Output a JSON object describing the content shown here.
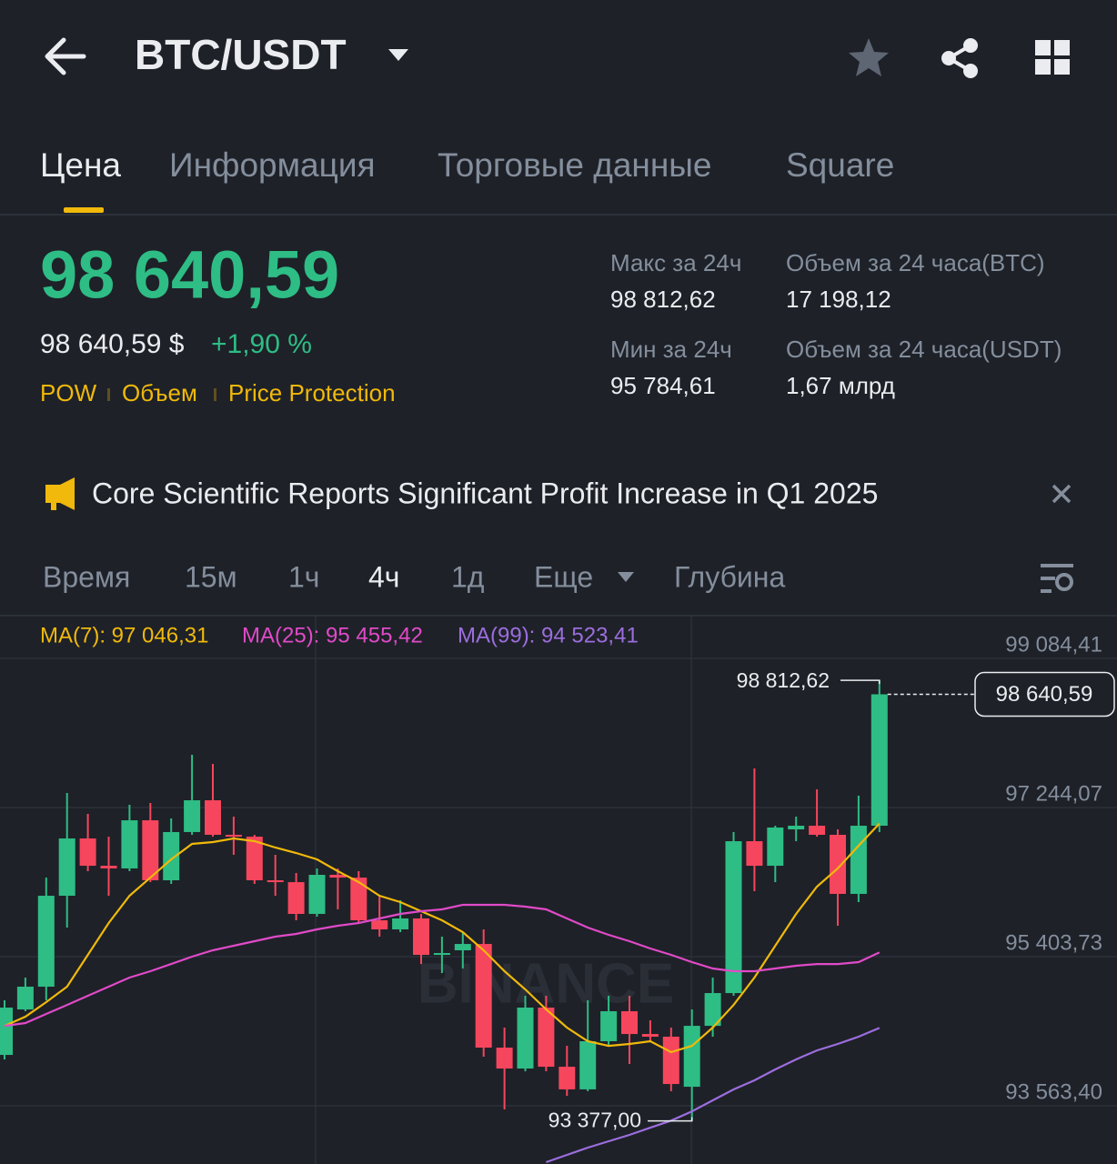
{
  "header": {
    "title": "BTC/USDT"
  },
  "tabs": [
    "Цена",
    "Информация",
    "Торговые данные",
    "Square"
  ],
  "price": {
    "last": "98 640,59",
    "usd": "98 640,59 $",
    "change": "+1,90 %",
    "tags": [
      "POW",
      "Объем",
      "Price Protection"
    ]
  },
  "stats": [
    {
      "label": "Макс за 24ч",
      "value": "98 812,62"
    },
    {
      "label": "Мин за 24ч",
      "value": "95 784,61"
    },
    {
      "label": "Объем за 24 часа(BTC)",
      "value": "17 198,12"
    },
    {
      "label": "Объем за 24 часа(USDT)",
      "value": "1,67 млрд"
    }
  ],
  "news": {
    "text": "Core Scientific Reports Significant Profit Increase in Q1 2025"
  },
  "intervals": [
    "Время",
    "15м",
    "1ч",
    "4ч",
    "1д",
    "Еще",
    "Глубина"
  ],
  "chart_data": {
    "type": "candlestick",
    "watermark": "BINANCE",
    "up_color": "#2ebd85",
    "down_color": "#f6465d",
    "open": [
      94191,
      94752,
      95033,
      96155,
      96862,
      96525,
      96492,
      97086,
      96346,
      96941,
      97333,
      96907,
      96884,
      96346,
      96323,
      95931,
      96413,
      96379,
      95852,
      95740,
      95875,
      95426,
      95482,
      95560,
      94281,
      94023,
      94775,
      94045,
      93766,
      94360,
      94730,
      94449,
      94416,
      93798,
      94550,
      94954,
      96828,
      96525,
      96974,
      97019,
      96907,
      96178,
      97019
    ],
    "high": [
      94865,
      95145,
      96379,
      97423,
      97165,
      96884,
      97277,
      97300,
      97109,
      97894,
      97782,
      97131,
      96907,
      96660,
      96436,
      96492,
      96492,
      96458,
      96155,
      96099,
      95931,
      95650,
      95706,
      95740,
      94528,
      94921,
      94921,
      94303,
      94865,
      94921,
      94921,
      94618,
      94528,
      94752,
      95145,
      96941,
      97726,
      97019,
      97131,
      97468,
      96974,
      97389,
      98812.62
    ],
    "low": [
      94135,
      94730,
      94865,
      95762,
      96458,
      96155,
      96458,
      96323,
      96301,
      96907,
      96884,
      96660,
      96301,
      96155,
      95852,
      95897,
      95987,
      95807,
      95650,
      95706,
      95313,
      95201,
      95257,
      94169,
      93518,
      93989,
      93989,
      93686,
      93742,
      94303,
      94079,
      94360,
      93742,
      93377,
      94416,
      94921,
      96211,
      96323,
      96828,
      96884,
      95785,
      96077,
      96941
    ],
    "close": [
      94775,
      95033,
      96155,
      96862,
      96525,
      96492,
      97086,
      96346,
      96941,
      97333,
      96907,
      96884,
      96346,
      96323,
      95931,
      96413,
      96379,
      95852,
      95740,
      95875,
      95426,
      95448,
      95560,
      94281,
      94023,
      94775,
      94045,
      93766,
      94360,
      94730,
      94449,
      94416,
      93832,
      94550,
      94954,
      96828,
      96525,
      96997,
      97019,
      96907,
      96178,
      97019,
      98640.59
    ],
    "series": [
      {
        "name": "MA(7): 97 046,31",
        "color": "#f0b90b",
        "values": [
          94550,
          94663,
          94842,
          95033,
          95426,
          95818,
          96155,
          96379,
          96604,
          96795,
          96817,
          96862,
          96828,
          96750,
          96682,
          96604,
          96458,
          96323,
          96155,
          96077,
          95964,
          95852,
          95706,
          95482,
          95224,
          94999,
          94752,
          94528,
          94360,
          94303,
          94326,
          94360,
          94225,
          94303,
          94528,
          94808,
          95145,
          95538,
          95931,
          96267,
          96492,
          96772,
          97046.31
        ]
      },
      {
        "name": "MA(25): 95 455,42",
        "color": "#e04ac8",
        "values": [
          94550,
          94584,
          94696,
          94808,
          94921,
          95033,
          95145,
          95224,
          95313,
          95403,
          95482,
          95538,
          95594,
          95650,
          95684,
          95740,
          95785,
          95818,
          95875,
          95931,
          95964,
          95987,
          96043,
          96043,
          96043,
          96020,
          95987,
          95875,
          95762,
          95673,
          95594,
          95504,
          95426,
          95336,
          95257,
          95224,
          95224,
          95257,
          95291,
          95313,
          95313,
          95336,
          95455.42
        ]
      },
      {
        "name": "MA(99): 94 523,41",
        "color": "#9c6ede",
        "values": [
          null,
          null,
          null,
          null,
          null,
          null,
          null,
          null,
          null,
          null,
          null,
          null,
          null,
          null,
          null,
          null,
          null,
          null,
          null,
          null,
          null,
          null,
          null,
          null,
          null,
          null,
          92867,
          92957,
          93047,
          93125,
          93204,
          93293,
          93380,
          93495,
          93630,
          93765,
          93877,
          94012,
          94135,
          94247,
          94326,
          94416,
          94523.41
        ]
      }
    ],
    "ylim": [
      92845,
      99600
    ],
    "yticks": [
      {
        "value": 99084.41,
        "label": "99 084,41"
      },
      {
        "value": 97244.07,
        "label": "97 244,07"
      },
      {
        "value": 95403.73,
        "label": "95 403,73"
      },
      {
        "value": 93563.4,
        "label": "93 563,40"
      }
    ],
    "grid": true,
    "high_marker": {
      "value": 98812.62,
      "label": "98 812,62"
    },
    "low_marker": {
      "value": 93377.0,
      "label": "93 377,00"
    },
    "last_price": {
      "value": 98640.59,
      "label": "98 640,59"
    }
  }
}
